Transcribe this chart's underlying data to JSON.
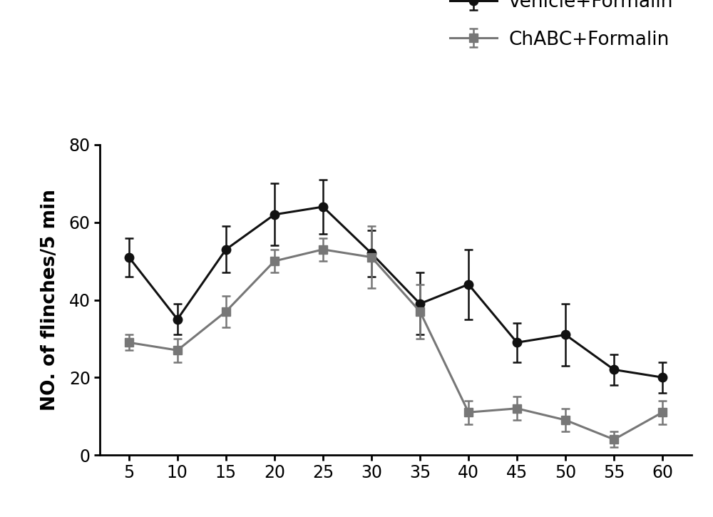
{
  "x": [
    5,
    10,
    15,
    20,
    25,
    30,
    35,
    40,
    45,
    50,
    55,
    60
  ],
  "vehicle_y": [
    51,
    35,
    53,
    62,
    64,
    52,
    39,
    44,
    29,
    31,
    22,
    20
  ],
  "vehicle_err": [
    5,
    4,
    6,
    8,
    7,
    6,
    8,
    9,
    5,
    8,
    4,
    4
  ],
  "chabc_y": [
    29,
    27,
    37,
    50,
    53,
    51,
    37,
    11,
    12,
    9,
    4,
    11
  ],
  "chabc_err": [
    2,
    3,
    4,
    3,
    3,
    8,
    7,
    3,
    3,
    3,
    2,
    3
  ],
  "vehicle_color": "#111111",
  "chabc_color": "#777777",
  "vehicle_label": "vehicle+Formalin",
  "chabc_label": "ChABC+Formalin",
  "ylabel": "NO. of flinches/5 min",
  "ylim": [
    0,
    80
  ],
  "xlim": [
    2,
    63
  ],
  "yticks": [
    0,
    20,
    40,
    60,
    80
  ],
  "xticks": [
    5,
    10,
    15,
    20,
    25,
    30,
    35,
    40,
    45,
    50,
    55,
    60
  ],
  "marker_size": 9,
  "line_width": 2.2,
  "capsize": 4,
  "background_color": "#ffffff"
}
